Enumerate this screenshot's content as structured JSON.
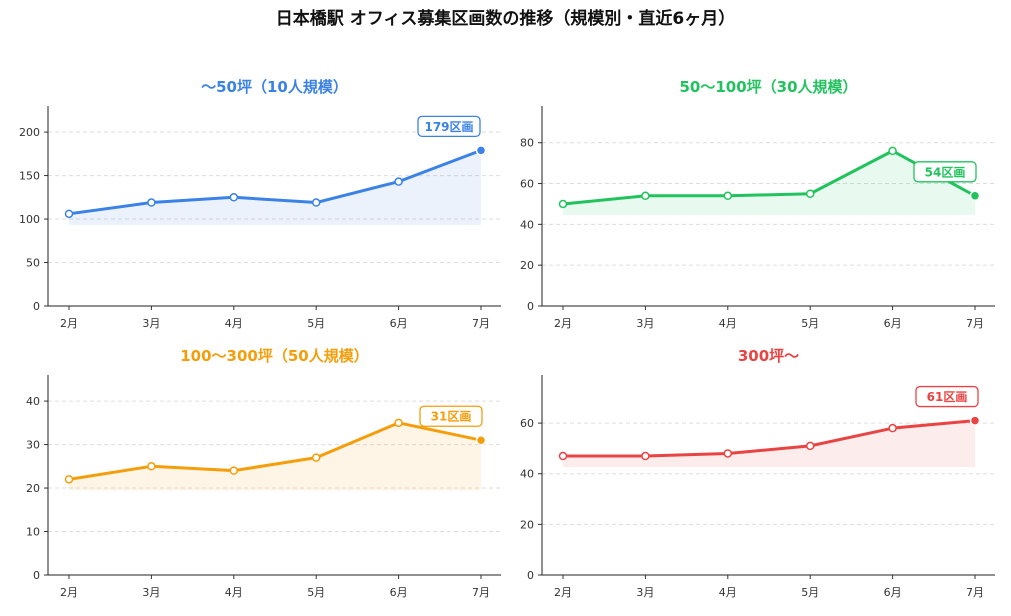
{
  "title": "日本橋駅 オフィス募集区画数の推移（規模別・直近6ヶ月）",
  "chart_data": [
    {
      "type": "line",
      "title": "〜50坪（10人規模）",
      "color": "#3b82e6",
      "categories": [
        "2月",
        "3月",
        "4月",
        "5月",
        "6月",
        "7月"
      ],
      "values": [
        106,
        119,
        125,
        119,
        143,
        179
      ],
      "ylim": [
        0,
        230
      ],
      "yticks": [
        0,
        50,
        100,
        150,
        200
      ],
      "callout": "179区画",
      "grid": true
    },
    {
      "type": "line",
      "title": "50〜100坪（30人規模）",
      "color": "#22c35e",
      "categories": [
        "2月",
        "3月",
        "4月",
        "5月",
        "6月",
        "7月"
      ],
      "values": [
        50,
        54,
        54,
        55,
        76,
        54
      ],
      "ylim": [
        0,
        98
      ],
      "yticks": [
        0,
        20,
        40,
        60,
        80
      ],
      "callout": "54区画",
      "grid": true
    },
    {
      "type": "line",
      "title": "100〜300坪（50人規模）",
      "color": "#f59e0b",
      "categories": [
        "2月",
        "3月",
        "4月",
        "5月",
        "6月",
        "7月"
      ],
      "values": [
        22,
        25,
        24,
        27,
        35,
        31
      ],
      "ylim": [
        0,
        46
      ],
      "yticks": [
        0,
        10,
        20,
        30,
        40
      ],
      "callout": "31区画",
      "grid": true
    },
    {
      "type": "line",
      "title": "300坪〜",
      "color": "#e84444",
      "categories": [
        "2月",
        "3月",
        "4月",
        "5月",
        "6月",
        "7月"
      ],
      "values": [
        47,
        47,
        48,
        51,
        58,
        61
      ],
      "ylim": [
        0,
        79
      ],
      "yticks": [
        0,
        20,
        40,
        60
      ],
      "callout": "61区画",
      "grid": true
    }
  ]
}
